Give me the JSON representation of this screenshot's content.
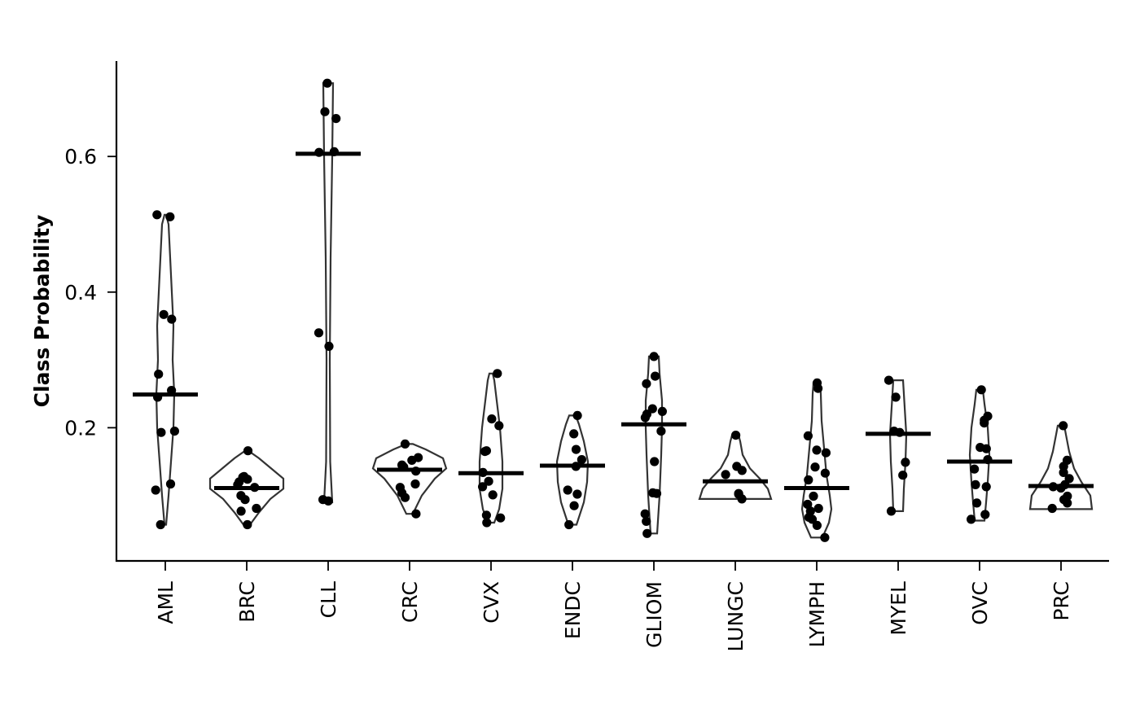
{
  "chart_data": {
    "type": "violin",
    "ylabel": "Class Probability",
    "yticks": [
      0.2,
      0.4,
      0.6
    ],
    "ylim": [
      0.0,
      0.74
    ],
    "grid": false,
    "categories": [
      "AML",
      "BRC",
      "CLL",
      "CRC",
      "CVX",
      "ENDC",
      "GLIOM",
      "LUNGC",
      "LYMPH",
      "MYEL",
      "OVC",
      "PRC"
    ],
    "groups": [
      {
        "name": "AML",
        "median": 0.249,
        "points": [
          0.511,
          0.514,
          0.367,
          0.36,
          0.279,
          0.255,
          0.245,
          0.195,
          0.193,
          0.117,
          0.108,
          0.057
        ],
        "violin": [
          [
            0.057,
            0.004
          ],
          [
            0.1,
            0.016
          ],
          [
            0.15,
            0.028
          ],
          [
            0.2,
            0.04
          ],
          [
            0.25,
            0.044
          ],
          [
            0.3,
            0.036
          ],
          [
            0.35,
            0.04
          ],
          [
            0.4,
            0.032
          ],
          [
            0.45,
            0.024
          ],
          [
            0.5,
            0.016
          ],
          [
            0.514,
            0.004
          ]
        ]
      },
      {
        "name": "BRC",
        "median": 0.111,
        "points": [
          0.166,
          0.128,
          0.127,
          0.124,
          0.12,
          0.116,
          0.112,
          0.1,
          0.094,
          0.081,
          0.077,
          0.057
        ],
        "violin": [
          [
            0.057,
            0.016
          ],
          [
            0.075,
            0.06
          ],
          [
            0.095,
            0.116
          ],
          [
            0.11,
            0.18
          ],
          [
            0.125,
            0.18
          ],
          [
            0.14,
            0.12
          ],
          [
            0.155,
            0.06
          ],
          [
            0.166,
            0.008
          ]
        ]
      },
      {
        "name": "CLL",
        "median": 0.604,
        "points": [
          0.708,
          0.666,
          0.656,
          0.606,
          0.607,
          0.34,
          0.32,
          0.094,
          0.092
        ],
        "violin": [
          [
            0.09,
            0.02
          ],
          [
            0.15,
            0.01
          ],
          [
            0.3,
            0.008
          ],
          [
            0.45,
            0.012
          ],
          [
            0.6,
            0.02
          ],
          [
            0.708,
            0.024
          ]
        ]
      },
      {
        "name": "CRC",
        "median": 0.138,
        "points": [
          0.176,
          0.156,
          0.152,
          0.145,
          0.142,
          0.136,
          0.117,
          0.112,
          0.104,
          0.097,
          0.073
        ],
        "violin": [
          [
            0.073,
            0.016
          ],
          [
            0.1,
            0.06
          ],
          [
            0.125,
            0.124
          ],
          [
            0.14,
            0.18
          ],
          [
            0.155,
            0.164
          ],
          [
            0.168,
            0.08
          ],
          [
            0.176,
            0.016
          ]
        ]
      },
      {
        "name": "CVX",
        "median": 0.133,
        "points": [
          0.28,
          0.213,
          0.203,
          0.166,
          0.165,
          0.134,
          0.121,
          0.113,
          0.101,
          0.071,
          0.067,
          0.06
        ],
        "violin": [
          [
            0.06,
            0.016
          ],
          [
            0.08,
            0.04
          ],
          [
            0.11,
            0.056
          ],
          [
            0.15,
            0.056
          ],
          [
            0.2,
            0.044
          ],
          [
            0.24,
            0.028
          ],
          [
            0.27,
            0.016
          ],
          [
            0.28,
            0.008
          ]
        ]
      },
      {
        "name": "ENDC",
        "median": 0.144,
        "points": [
          0.218,
          0.191,
          0.168,
          0.153,
          0.143,
          0.108,
          0.102,
          0.085,
          0.057
        ],
        "violin": [
          [
            0.057,
            0.02
          ],
          [
            0.09,
            0.056
          ],
          [
            0.12,
            0.072
          ],
          [
            0.15,
            0.076
          ],
          [
            0.18,
            0.056
          ],
          [
            0.205,
            0.032
          ],
          [
            0.218,
            0.016
          ]
        ]
      },
      {
        "name": "GLIOM",
        "median": 0.205,
        "points": [
          0.305,
          0.276,
          0.265,
          0.228,
          0.224,
          0.22,
          0.215,
          0.195,
          0.15,
          0.104,
          0.103,
          0.073,
          0.062,
          0.044
        ],
        "violin": [
          [
            0.044,
            0.016
          ],
          [
            0.1,
            0.028
          ],
          [
            0.16,
            0.036
          ],
          [
            0.2,
            0.04
          ],
          [
            0.24,
            0.04
          ],
          [
            0.28,
            0.028
          ],
          [
            0.305,
            0.024
          ]
        ]
      },
      {
        "name": "LUNGC",
        "median": 0.121,
        "points": [
          0.189,
          0.143,
          0.137,
          0.131,
          0.103,
          0.102,
          0.095
        ],
        "violin": [
          [
            0.095,
            0.176
          ],
          [
            0.11,
            0.16
          ],
          [
            0.125,
            0.12
          ],
          [
            0.14,
            0.072
          ],
          [
            0.16,
            0.036
          ],
          [
            0.18,
            0.024
          ],
          [
            0.189,
            0.016
          ]
        ]
      },
      {
        "name": "LYMPH",
        "median": 0.111,
        "points": [
          0.266,
          0.258,
          0.188,
          0.167,
          0.163,
          0.142,
          0.133,
          0.123,
          0.099,
          0.087,
          0.081,
          0.077,
          0.068,
          0.065,
          0.056,
          0.038
        ],
        "violin": [
          [
            0.038,
            0.028
          ],
          [
            0.06,
            0.06
          ],
          [
            0.08,
            0.072
          ],
          [
            0.1,
            0.064
          ],
          [
            0.13,
            0.048
          ],
          [
            0.17,
            0.036
          ],
          [
            0.21,
            0.024
          ],
          [
            0.25,
            0.02
          ],
          [
            0.266,
            0.016
          ]
        ]
      },
      {
        "name": "MYEL",
        "median": 0.191,
        "points": [
          0.27,
          0.245,
          0.195,
          0.193,
          0.149,
          0.13,
          0.077
        ],
        "violin": [
          [
            0.077,
            0.024
          ],
          [
            0.11,
            0.028
          ],
          [
            0.15,
            0.036
          ],
          [
            0.19,
            0.04
          ],
          [
            0.23,
            0.032
          ],
          [
            0.27,
            0.024
          ]
        ]
      },
      {
        "name": "OVC",
        "median": 0.15,
        "points": [
          0.256,
          0.217,
          0.211,
          0.207,
          0.171,
          0.169,
          0.153,
          0.139,
          0.116,
          0.113,
          0.089,
          0.072,
          0.065
        ],
        "violin": [
          [
            0.063,
            0.024
          ],
          [
            0.09,
            0.032
          ],
          [
            0.12,
            0.04
          ],
          [
            0.16,
            0.048
          ],
          [
            0.2,
            0.04
          ],
          [
            0.235,
            0.024
          ],
          [
            0.256,
            0.016
          ]
        ]
      },
      {
        "name": "PRC",
        "median": 0.114,
        "points": [
          0.203,
          0.152,
          0.143,
          0.134,
          0.125,
          0.116,
          0.113,
          0.111,
          0.099,
          0.094,
          0.089,
          0.081
        ],
        "violin": [
          [
            0.08,
            0.152
          ],
          [
            0.1,
            0.144
          ],
          [
            0.12,
            0.1
          ],
          [
            0.14,
            0.064
          ],
          [
            0.165,
            0.04
          ],
          [
            0.19,
            0.024
          ],
          [
            0.203,
            0.016
          ]
        ]
      }
    ]
  }
}
